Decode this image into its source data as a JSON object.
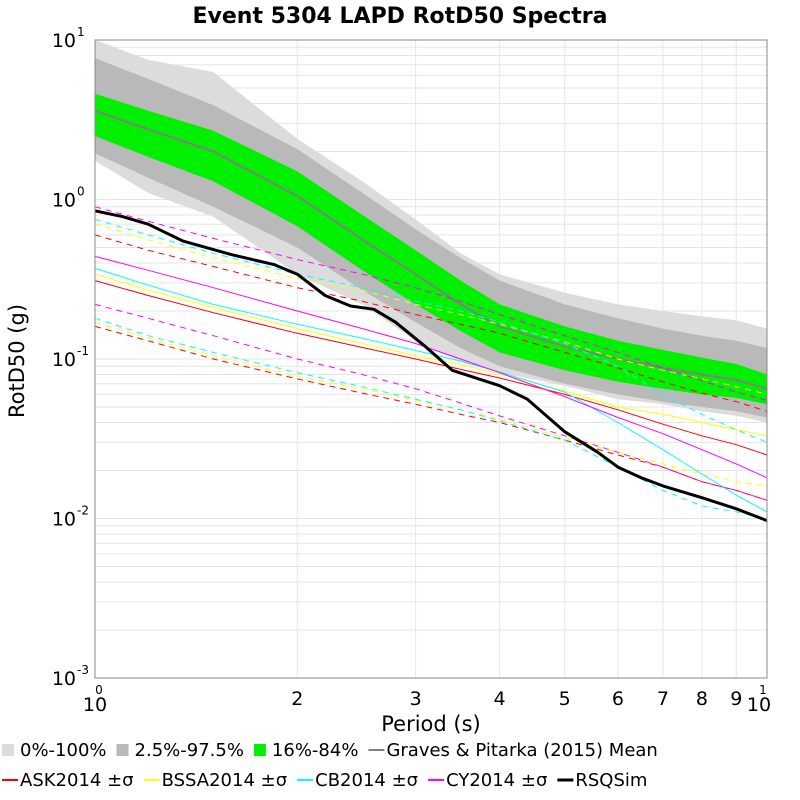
{
  "chart_data": {
    "type": "line",
    "title": "Event 5304 LAPD RotD50 Spectra",
    "xlabel": "Period (s)",
    "ylabel": "RotD50 (g)",
    "x_scale": "log",
    "y_scale": "log",
    "xlim": [
      1,
      10
    ],
    "ylim": [
      0.001,
      10
    ],
    "grid": true,
    "legend_position": "bottom",
    "x_ticks": [
      {
        "value": 1,
        "base": "10",
        "exp": "0"
      },
      {
        "value": 2,
        "label": "2"
      },
      {
        "value": 3,
        "label": "3"
      },
      {
        "value": 4,
        "label": "4"
      },
      {
        "value": 5,
        "label": "5"
      },
      {
        "value": 6,
        "label": "6"
      },
      {
        "value": 7,
        "label": "7"
      },
      {
        "value": 8,
        "label": "8"
      },
      {
        "value": 9,
        "label": "9"
      },
      {
        "value": 10,
        "base": "10",
        "exp": "1"
      }
    ],
    "y_ticks": [
      {
        "value": 0.001,
        "base": "10",
        "exp": "-3"
      },
      {
        "value": 0.01,
        "base": "10",
        "exp": "-2"
      },
      {
        "value": 0.1,
        "base": "10",
        "exp": "-1"
      },
      {
        "value": 1,
        "base": "10",
        "exp": "0"
      },
      {
        "value": 10,
        "base": "10",
        "exp": "1"
      }
    ],
    "x": [
      1,
      1.2,
      1.5,
      2,
      2.5,
      3,
      3.5,
      4,
      5,
      6,
      7,
      8,
      9,
      10
    ],
    "bands": [
      {
        "name": "0%-100%",
        "color": "#dcdcdc",
        "upper": [
          10,
          7.5,
          6.3,
          2.4,
          1.3,
          0.75,
          0.46,
          0.34,
          0.26,
          0.22,
          0.2,
          0.185,
          0.175,
          0.155
        ],
        "lower": [
          1.75,
          1.1,
          0.78,
          0.34,
          0.22,
          0.13,
          0.096,
          0.082,
          0.068,
          0.056,
          0.052,
          0.047,
          0.044,
          0.04
        ]
      },
      {
        "name": "2.5%-97.5%",
        "color": "#b9b9b9",
        "upper": [
          7.7,
          5.7,
          3.9,
          2.07,
          1.1,
          0.65,
          0.43,
          0.31,
          0.22,
          0.18,
          0.155,
          0.14,
          0.13,
          0.117
        ],
        "lower": [
          1.95,
          1.37,
          0.9,
          0.5,
          0.27,
          0.17,
          0.117,
          0.09,
          0.07,
          0.06,
          0.054,
          0.05,
          0.047,
          0.043
        ]
      },
      {
        "name": "16%-84%",
        "color": "#00f000",
        "upper": [
          4.6,
          3.6,
          2.7,
          1.5,
          0.8,
          0.48,
          0.31,
          0.22,
          0.16,
          0.13,
          0.114,
          0.102,
          0.093,
          0.08
        ],
        "lower": [
          2.5,
          1.85,
          1.3,
          0.68,
          0.36,
          0.22,
          0.15,
          0.11,
          0.085,
          0.072,
          0.065,
          0.06,
          0.057,
          0.052
        ]
      }
    ],
    "series": [
      {
        "name": "Graves & Pitarka (2015) Mean",
        "color": "#808080",
        "width": 2,
        "dash": "",
        "values": [
          3.6,
          2.75,
          2.0,
          1.05,
          0.56,
          0.34,
          0.22,
          0.16,
          0.12,
          0.1,
          0.088,
          0.08,
          0.074,
          0.065
        ]
      },
      {
        "name": "ASK2014 ±σ",
        "color": "#ff0000",
        "width": 1,
        "dash": "",
        "legend": true,
        "values": [
          0.31,
          0.25,
          0.195,
          0.145,
          0.118,
          0.1,
          0.086,
          0.076,
          0.06,
          0.048,
          0.039,
          0.033,
          0.029,
          0.025
        ]
      },
      {
        "name": "ASK2014 +σ",
        "color": "#ff0000",
        "width": 1,
        "dash": "6,5",
        "legend": false,
        "values": [
          0.6,
          0.48,
          0.38,
          0.28,
          0.23,
          0.19,
          0.165,
          0.145,
          0.11,
          0.088,
          0.072,
          0.061,
          0.054,
          0.047
        ]
      },
      {
        "name": "ASK2014 −σ",
        "color": "#ff0000",
        "width": 1,
        "dash": "6,5",
        "legend": false,
        "values": [
          0.16,
          0.13,
          0.1,
          0.075,
          0.061,
          0.052,
          0.045,
          0.04,
          0.031,
          0.025,
          0.021,
          0.017,
          0.015,
          0.013
        ]
      },
      {
        "name": "BSSA2014 ±σ",
        "color": "#ffff00",
        "width": 1,
        "dash": "",
        "legend": true,
        "values": [
          0.34,
          0.27,
          0.21,
          0.155,
          0.125,
          0.105,
          0.092,
          0.081,
          0.063,
          0.05,
          0.045,
          0.04,
          0.036,
          0.033
        ]
      },
      {
        "name": "BSSA2014 +σ",
        "color": "#ffff00",
        "width": 1,
        "dash": "6,5",
        "legend": false,
        "values": [
          0.7,
          0.56,
          0.43,
          0.32,
          0.27,
          0.22,
          0.19,
          0.165,
          0.128,
          0.1,
          0.085,
          0.075,
          0.067,
          0.06
        ]
      },
      {
        "name": "BSSA2014 −σ",
        "color": "#ffff00",
        "width": 1,
        "dash": "6,5",
        "legend": false,
        "values": [
          0.17,
          0.135,
          0.105,
          0.078,
          0.065,
          0.055,
          0.048,
          0.042,
          0.032,
          0.026,
          0.022,
          0.019,
          0.017,
          0.016
        ]
      },
      {
        "name": "CB2014 ±σ",
        "color": "#00ffff",
        "width": 1,
        "dash": "",
        "legend": true,
        "values": [
          0.37,
          0.29,
          0.22,
          0.165,
          0.135,
          0.113,
          0.097,
          0.083,
          0.062,
          0.04,
          0.027,
          0.019,
          0.014,
          0.011
        ]
      },
      {
        "name": "CB2014 +σ",
        "color": "#00ffff",
        "width": 1,
        "dash": "6,5",
        "legend": false,
        "values": [
          0.75,
          0.6,
          0.46,
          0.34,
          0.28,
          0.23,
          0.2,
          0.17,
          0.125,
          0.09,
          0.06,
          0.045,
          0.036,
          0.03
        ]
      },
      {
        "name": "CB2014 −σ",
        "color": "#00ffff",
        "width": 1,
        "dash": "6,5",
        "legend": false,
        "values": [
          0.18,
          0.14,
          0.11,
          0.082,
          0.067,
          0.056,
          0.048,
          0.041,
          0.031,
          0.021,
          0.015,
          0.012,
          0.011,
          0.01
        ]
      },
      {
        "name": "CY2014 ±σ",
        "color": "#ff00ff",
        "width": 1,
        "dash": "",
        "legend": true,
        "values": [
          0.44,
          0.36,
          0.28,
          0.2,
          0.155,
          0.125,
          0.1,
          0.082,
          0.058,
          0.043,
          0.034,
          0.027,
          0.022,
          0.018
        ]
      },
      {
        "name": "CY2014 +σ",
        "color": "#ff00ff",
        "width": 1,
        "dash": "6,5",
        "legend": false,
        "values": [
          0.9,
          0.73,
          0.57,
          0.42,
          0.34,
          0.28,
          0.23,
          0.19,
          0.14,
          0.11,
          0.088,
          0.073,
          0.062,
          0.055
        ]
      },
      {
        "name": "CY2014 −σ",
        "color": "#ff00ff",
        "width": 1,
        "dash": "6,5",
        "legend": false,
        "values": [
          0.22,
          0.18,
          0.14,
          0.1,
          0.08,
          0.065,
          0.053,
          0.044,
          0.033,
          0.026,
          0.021,
          0.017,
          0.015,
          0.013
        ]
      },
      {
        "name": "RSQSim",
        "color": "#000000",
        "width": 3,
        "dash": "",
        "legend": true,
        "x": [
          1,
          1.1,
          1.2,
          1.35,
          1.6,
          1.85,
          2,
          2.2,
          2.4,
          2.6,
          2.8,
          3.1,
          3.4,
          4,
          4.4,
          5,
          5.6,
          6,
          6.5,
          7,
          8,
          9,
          10
        ],
        "values": [
          0.85,
          0.78,
          0.7,
          0.55,
          0.45,
          0.39,
          0.34,
          0.25,
          0.215,
          0.205,
          0.17,
          0.12,
          0.085,
          0.068,
          0.056,
          0.035,
          0.026,
          0.021,
          0.018,
          0.016,
          0.0135,
          0.0115,
          0.0097
        ]
      }
    ],
    "legend": [
      {
        "label": "0%-100%",
        "type": "patch",
        "color": "#dcdcdc"
      },
      {
        "label": "2.5%-97.5%",
        "type": "patch",
        "color": "#b9b9b9"
      },
      {
        "label": "16%-84%",
        "type": "patch",
        "color": "#00f000"
      },
      {
        "label": "Graves & Pitarka (2015) Mean",
        "type": "line",
        "color": "#808080"
      },
      {
        "label": "ASK2014 ±σ",
        "type": "line",
        "color": "#ff0000"
      },
      {
        "label": "BSSA2014 ±σ",
        "type": "line",
        "color": "#ffff00"
      },
      {
        "label": "CB2014 ±σ",
        "type": "line",
        "color": "#00ffff"
      },
      {
        "label": "CY2014 ±σ",
        "type": "line",
        "color": "#ff00ff"
      },
      {
        "label": "RSQSim",
        "type": "line",
        "color": "#000000"
      }
    ]
  }
}
